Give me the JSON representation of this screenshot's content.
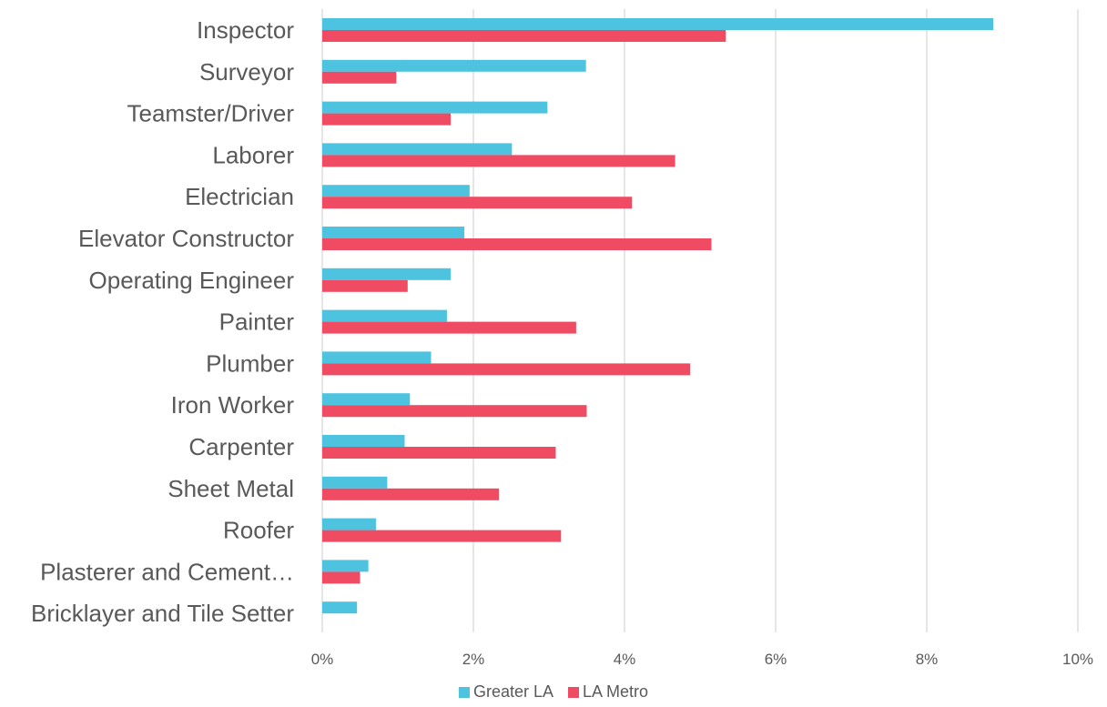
{
  "chart_data": {
    "type": "bar",
    "orientation": "horizontal",
    "categories": [
      "Inspector",
      "Surveyor",
      "Teamster/Driver",
      "Laborer",
      "Electrician",
      "Elevator Constructor",
      "Operating Engineer",
      "Painter",
      "Plumber",
      "Iron Worker",
      "Carpenter",
      "Sheet Metal",
      "Roofer",
      "Plasterer and Cement…",
      "Bricklayer and Tile Setter"
    ],
    "series": [
      {
        "name": "Greater LA",
        "color": "#4EC3E0",
        "values": [
          8.88,
          3.49,
          2.98,
          2.51,
          1.95,
          1.88,
          1.7,
          1.65,
          1.44,
          1.16,
          1.09,
          0.86,
          0.71,
          0.61,
          0.46
        ]
      },
      {
        "name": "LA Metro",
        "color": "#EF4B63",
        "values": [
          5.34,
          0.98,
          1.7,
          4.67,
          4.1,
          5.15,
          1.13,
          3.36,
          4.87,
          3.5,
          3.09,
          2.34,
          3.16,
          0.5,
          0.0
        ]
      }
    ],
    "xlim": [
      0,
      10
    ],
    "xticks": [
      "0%",
      "2%",
      "4%",
      "6%",
      "8%",
      "10%"
    ],
    "grid": "vertical",
    "legend_position": "bottom"
  },
  "legend": {
    "items": [
      {
        "label": "Greater LA",
        "color": "#4EC3E0"
      },
      {
        "label": "LA Metro",
        "color": "#EF4B63"
      }
    ]
  }
}
